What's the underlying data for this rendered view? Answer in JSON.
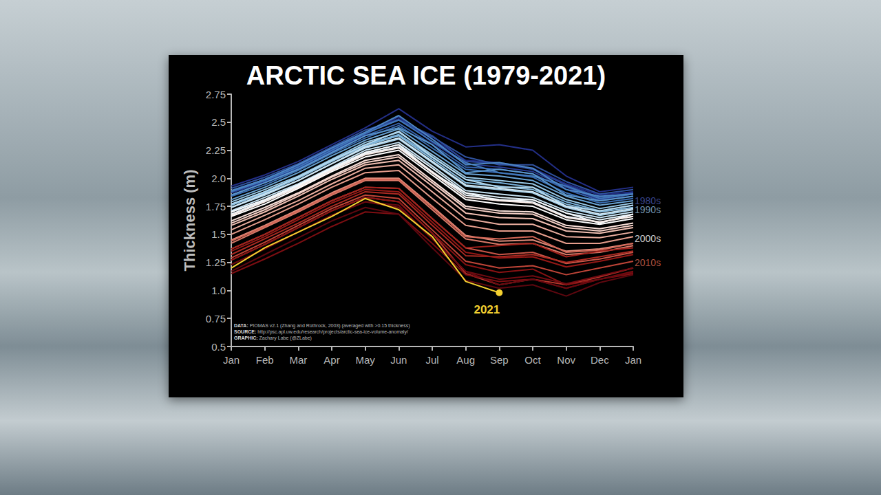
{
  "chart_data": {
    "type": "line",
    "title": "ARCTIC SEA ICE (1979-2021)",
    "y_label": "Thickness (m)",
    "categories": [
      "Jan",
      "Feb",
      "Mar",
      "Apr",
      "May",
      "Jun",
      "Jul",
      "Aug",
      "Sep",
      "Oct",
      "Nov",
      "Dec",
      "Jan"
    ],
    "ylim": [
      0.5,
      2.75
    ],
    "yticks": [
      0.5,
      0.75,
      {
        "value": 1,
        "label": "1.0"
      },
      1.25,
      1.5,
      1.75,
      {
        "value": 2,
        "label": "2.0"
      },
      2.25,
      2.5,
      2.75
    ],
    "grid": false,
    "series": [
      {
        "color": "#1f2a80",
        "values": [
          1.89,
          1.99,
          2.12,
          2.27,
          2.41,
          2.53,
          2.35,
          2.16,
          2.14,
          2.09,
          1.95,
          1.85,
          1.88
        ]
      },
      {
        "color": "#232f87",
        "values": [
          1.93,
          2.03,
          2.15,
          2.3,
          2.45,
          2.62,
          2.42,
          2.28,
          2.3,
          2.25,
          2.02,
          1.88,
          1.92
        ]
      },
      {
        "color": "#27398f",
        "values": [
          1.87,
          1.97,
          2.09,
          2.24,
          2.39,
          2.55,
          2.32,
          2.13,
          2.1,
          2.06,
          1.92,
          1.81,
          1.86
        ]
      },
      {
        "color": "#2b4597",
        "values": [
          1.88,
          1.99,
          2.11,
          2.26,
          2.41,
          2.52,
          2.38,
          2.15,
          2.13,
          2.08,
          1.94,
          1.83,
          1.87
        ]
      },
      {
        "color": "#30529f",
        "values": [
          1.91,
          2.01,
          2.13,
          2.28,
          2.43,
          2.52,
          2.37,
          2.19,
          2.12,
          2.12,
          1.97,
          1.86,
          1.9
        ]
      },
      {
        "color": "#355fa8",
        "values": [
          1.85,
          1.96,
          2.08,
          2.23,
          2.38,
          2.49,
          2.3,
          2.1,
          2.08,
          2.04,
          1.9,
          1.8,
          1.84
        ]
      },
      {
        "color": "#3a6cb1",
        "values": [
          1.84,
          1.94,
          2.07,
          2.22,
          2.36,
          2.47,
          2.27,
          2.08,
          2.05,
          2.01,
          1.87,
          1.78,
          1.82
        ]
      },
      {
        "color": "#4279bb",
        "values": [
          1.88,
          1.98,
          2.1,
          2.25,
          2.4,
          2.52,
          2.33,
          2.14,
          2.05,
          2.02,
          1.93,
          1.82,
          1.86
        ]
      },
      {
        "color": "#4d87c4",
        "values": [
          1.89,
          1.99,
          2.12,
          2.27,
          2.41,
          2.56,
          2.35,
          2.12,
          2.14,
          2.09,
          1.9,
          1.84,
          1.86
        ]
      },
      {
        "color": "#5a95cc",
        "values": [
          1.85,
          1.96,
          2.08,
          2.23,
          2.38,
          2.45,
          2.3,
          2.05,
          2.08,
          2.04,
          1.85,
          1.8,
          1.84
        ]
      },
      {
        "color": "#68a2d3",
        "values": [
          1.81,
          1.92,
          2.05,
          2.2,
          2.34,
          2.44,
          2.24,
          2.04,
          2.02,
          1.98,
          1.84,
          1.76,
          1.8
        ]
      },
      {
        "color": "#77afd9",
        "values": [
          1.77,
          1.88,
          2.01,
          2.16,
          2.3,
          2.39,
          2.19,
          1.99,
          1.96,
          1.92,
          1.79,
          1.71,
          1.76
        ]
      },
      {
        "color": "#86bbdf",
        "values": [
          1.76,
          1.87,
          2.0,
          2.15,
          2.29,
          2.38,
          2.17,
          1.96,
          1.93,
          1.9,
          1.77,
          1.7,
          1.74
        ]
      },
      {
        "color": "#96c6e4",
        "values": [
          1.79,
          1.9,
          2.02,
          2.17,
          2.32,
          2.41,
          2.21,
          2.01,
          1.98,
          1.95,
          1.81,
          1.73,
          1.78
        ]
      },
      {
        "color": "#a6d0e9",
        "values": [
          1.74,
          1.85,
          1.98,
          2.13,
          2.27,
          2.35,
          2.14,
          1.93,
          1.9,
          1.87,
          1.74,
          1.67,
          1.72
        ]
      },
      {
        "color": "#b5d9ee",
        "values": [
          1.77,
          1.88,
          2.01,
          2.16,
          2.3,
          2.42,
          2.19,
          1.99,
          1.92,
          1.92,
          1.75,
          1.71,
          1.76
        ]
      },
      {
        "color": "#c4e1f2",
        "values": [
          1.71,
          1.83,
          1.95,
          2.1,
          2.25,
          2.32,
          2.11,
          1.89,
          1.86,
          1.83,
          1.71,
          1.65,
          1.7
        ]
      },
      {
        "color": "#d2e8f5",
        "values": [
          1.74,
          1.86,
          1.98,
          2.13,
          2.28,
          2.36,
          2.15,
          1.94,
          1.91,
          1.88,
          1.75,
          1.68,
          1.73
        ]
      },
      {
        "color": "#dfeff8",
        "values": [
          1.7,
          1.81,
          1.94,
          2.09,
          2.23,
          2.3,
          2.09,
          1.87,
          1.83,
          1.81,
          1.69,
          1.63,
          1.68
        ]
      },
      {
        "color": "#ebf4fa",
        "values": [
          1.68,
          1.8,
          1.93,
          2.08,
          2.22,
          2.28,
          2.06,
          1.85,
          1.81,
          1.79,
          1.66,
          1.61,
          1.66
        ]
      },
      {
        "color": "#f5f9fc",
        "values": [
          1.7,
          1.81,
          1.94,
          2.09,
          2.23,
          2.3,
          2.05,
          1.87,
          1.8,
          1.81,
          1.69,
          1.6,
          1.68
        ]
      },
      {
        "color": "#ffffff",
        "values": [
          1.66,
          1.77,
          1.91,
          2.06,
          2.19,
          2.25,
          2.03,
          1.81,
          1.77,
          1.75,
          1.63,
          1.59,
          1.64
        ]
      },
      {
        "color": "#fbeeea",
        "values": [
          1.67,
          1.79,
          1.92,
          2.07,
          2.21,
          2.27,
          2.05,
          1.83,
          1.8,
          1.78,
          1.65,
          1.61,
          1.66
        ]
      },
      {
        "color": "#f8dfd8",
        "values": [
          1.62,
          1.74,
          1.87,
          2.02,
          2.16,
          2.21,
          1.98,
          1.75,
          1.71,
          1.7,
          1.58,
          1.55,
          1.6
        ]
      },
      {
        "color": "#f4cfc5",
        "values": [
          1.6,
          1.72,
          1.86,
          2.01,
          2.14,
          2.19,
          1.96,
          1.73,
          1.69,
          1.68,
          1.56,
          1.53,
          1.58
        ]
      },
      {
        "color": "#f0bfb2",
        "values": [
          1.58,
          1.7,
          1.84,
          1.99,
          2.12,
          2.16,
          1.93,
          1.69,
          1.65,
          1.64,
          1.53,
          1.51,
          1.56
        ]
      },
      {
        "color": "#ebae9f",
        "values": [
          1.54,
          1.67,
          1.8,
          1.95,
          2.09,
          2.12,
          1.88,
          1.64,
          1.59,
          1.59,
          1.48,
          1.47,
          1.52
        ]
      },
      {
        "color": "#e69d8c",
        "values": [
          1.5,
          1.63,
          1.77,
          1.92,
          2.05,
          2.07,
          1.82,
          1.58,
          1.53,
          1.53,
          1.42,
          1.42,
          1.48
        ]
      },
      {
        "color": "#e08b7a",
        "values": [
          1.45,
          1.58,
          1.72,
          1.87,
          2.0,
          2.0,
          1.75,
          1.49,
          1.44,
          1.45,
          1.35,
          1.37,
          1.42
        ]
      },
      {
        "color": "#d97968",
        "values": [
          1.42,
          1.56,
          1.7,
          1.85,
          1.98,
          1.98,
          1.72,
          1.46,
          1.41,
          1.42,
          1.32,
          1.34,
          1.4
        ]
      },
      {
        "color": "#d26757",
        "values": [
          1.44,
          1.57,
          1.71,
          1.86,
          1.99,
          1.99,
          1.74,
          1.48,
          1.46,
          1.48,
          1.34,
          1.36,
          1.42
        ]
      },
      {
        "color": "#c95547",
        "values": [
          1.37,
          1.5,
          1.65,
          1.8,
          1.92,
          1.91,
          1.64,
          1.38,
          1.32,
          1.34,
          1.24,
          1.28,
          1.34
        ]
      },
      {
        "color": "#c04538",
        "values": [
          1.29,
          1.43,
          1.58,
          1.73,
          1.85,
          1.82,
          1.54,
          1.26,
          1.2,
          1.22,
          1.14,
          1.2,
          1.26
        ]
      },
      {
        "color": "#b6362c",
        "values": [
          1.27,
          1.41,
          1.56,
          1.71,
          1.83,
          1.79,
          1.51,
          1.15,
          1.05,
          1.1,
          1.05,
          1.12,
          1.2
        ]
      },
      {
        "color": "#ab2a22",
        "values": [
          1.32,
          1.46,
          1.6,
          1.75,
          1.88,
          1.86,
          1.58,
          1.31,
          1.3,
          1.32,
          1.25,
          1.3,
          1.35
        ]
      },
      {
        "color": "#a0201b",
        "values": [
          1.37,
          1.5,
          1.65,
          1.8,
          1.92,
          1.91,
          1.64,
          1.38,
          1.4,
          1.42,
          1.3,
          1.35,
          1.38
        ]
      },
      {
        "color": "#951816",
        "values": [
          1.35,
          1.48,
          1.63,
          1.78,
          1.9,
          1.88,
          1.61,
          1.34,
          1.29,
          1.3,
          1.21,
          1.26,
          1.32
        ]
      },
      {
        "color": "#891213",
        "values": [
          1.27,
          1.41,
          1.56,
          1.71,
          1.83,
          1.79,
          1.51,
          1.23,
          1.16,
          1.19,
          1.05,
          1.1,
          1.15
        ]
      },
      {
        "color": "#7d0e12",
        "values": [
          1.15,
          1.28,
          1.42,
          1.57,
          1.7,
          1.68,
          1.42,
          1.14,
          1.08,
          1.1,
          1.02,
          1.1,
          1.17
        ]
      },
      {
        "color": "#720b11",
        "values": [
          1.23,
          1.37,
          1.52,
          1.67,
          1.79,
          1.74,
          1.46,
          1.17,
          1.1,
          1.13,
          1.06,
          1.13,
          1.2
        ]
      },
      {
        "color": "#680910",
        "values": [
          1.23,
          1.37,
          1.52,
          1.67,
          1.79,
          1.76,
          1.46,
          1.17,
          1.05,
          1.1,
          1.02,
          1.1,
          1.16
        ]
      },
      {
        "color": "#5e070f",
        "values": [
          1.17,
          1.32,
          1.47,
          1.62,
          1.74,
          1.68,
          1.38,
          1.09,
          1.02,
          1.05,
          0.95,
          1.07,
          1.14
        ]
      },
      {
        "name": "2021",
        "color": "#f5d130",
        "marker": "circle",
        "values": [
          1.2,
          1.38,
          1.52,
          1.66,
          1.82,
          1.72,
          1.48,
          1.08,
          0.98,
          null,
          null,
          null,
          null
        ]
      }
    ],
    "annotations": [
      {
        "text": "1980s",
        "y": 1.8,
        "color": "#4656b0"
      },
      {
        "text": "1990s",
        "y": 1.72,
        "color": "#8fb8dc"
      },
      {
        "text": "2000s",
        "y": 1.46,
        "color": "#ffffff"
      },
      {
        "text": "2010s",
        "y": 1.25,
        "color": "#d9654f"
      }
    ],
    "notes": [
      "DATA: PIOMAS v2.1 (Zhang and Rothrock, 2003) (averaged with >0.15 thickness)",
      "SOURCE: http://psc.apl.uw.edu/research/projects/arctic-sea-ice-volume-anomaly/",
      "GRAPHIC: Zachary Labe (@ZLabe)"
    ]
  }
}
